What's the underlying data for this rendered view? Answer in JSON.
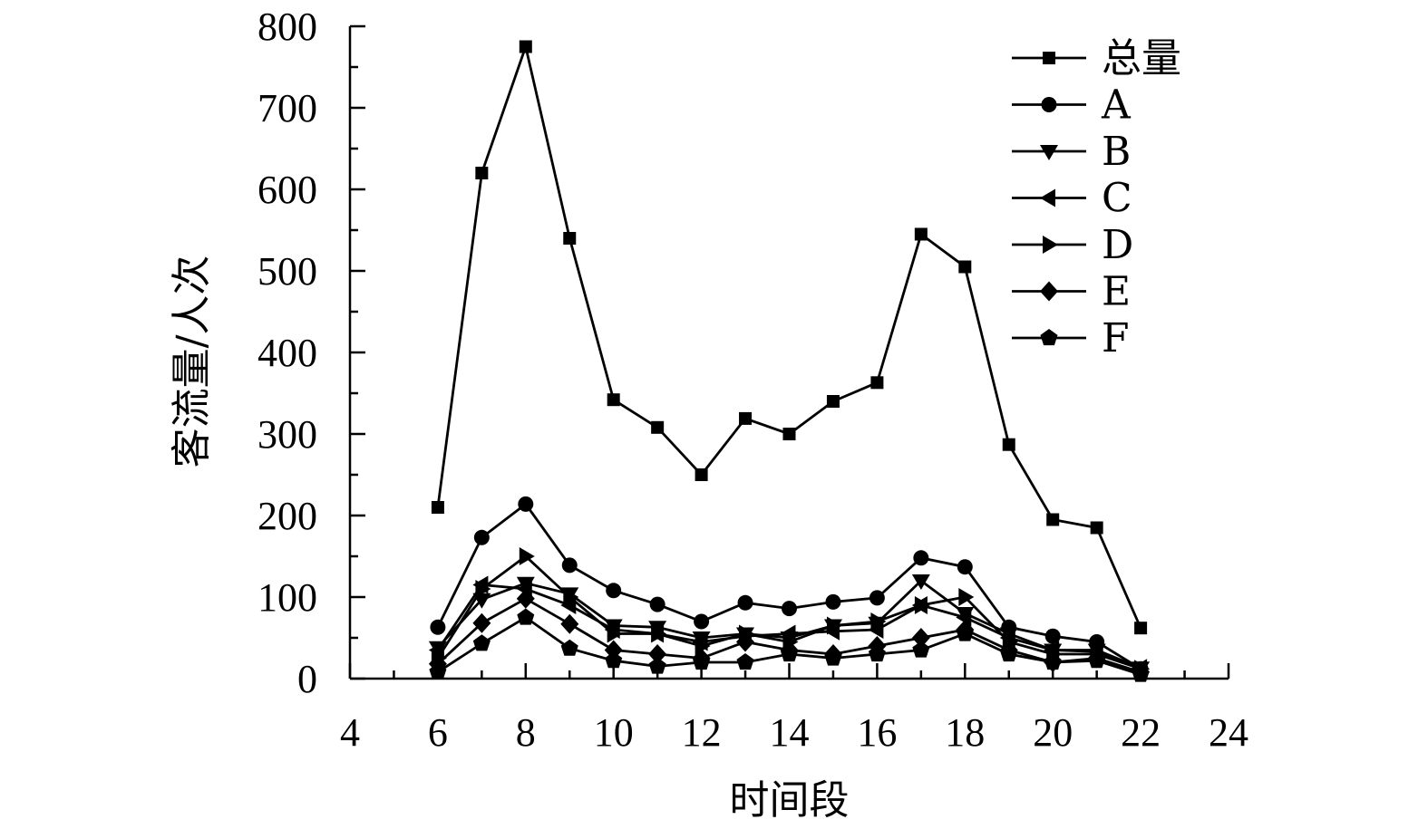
{
  "chart_data": {
    "type": "line",
    "xlabel": "时间段",
    "ylabel": "客流量/人次",
    "xlim": [
      4,
      24
    ],
    "ylim": [
      0,
      800
    ],
    "xticks": [
      4,
      6,
      8,
      10,
      12,
      14,
      16,
      18,
      20,
      22,
      24
    ],
    "yticks": [
      0,
      100,
      200,
      300,
      400,
      500,
      600,
      700,
      800
    ],
    "x": [
      6,
      7,
      8,
      9,
      10,
      11,
      12,
      13,
      14,
      15,
      16,
      17,
      18,
      19,
      20,
      21,
      22
    ],
    "legend_position": "top-right",
    "grid": false,
    "series": [
      {
        "name": "总量",
        "marker": "square",
        "values": [
          210,
          620,
          775,
          540,
          342,
          308,
          250,
          319,
          300,
          340,
          363,
          545,
          505,
          287,
          195,
          185,
          62
        ]
      },
      {
        "name": "A",
        "marker": "circle",
        "values": [
          63,
          173,
          214,
          139,
          108,
          91,
          70,
          93,
          86,
          94,
          99,
          148,
          137,
          63,
          52,
          45,
          12
        ]
      },
      {
        "name": "B",
        "marker": "triangle-down",
        "values": [
          38,
          97,
          117,
          104,
          65,
          63,
          50,
          55,
          50,
          65,
          68,
          120,
          80,
          55,
          35,
          35,
          13
        ]
      },
      {
        "name": "C",
        "marker": "triangle-left",
        "values": [
          35,
          115,
          110,
          90,
          60,
          55,
          45,
          52,
          55,
          58,
          60,
          90,
          75,
          50,
          35,
          33,
          13
        ]
      },
      {
        "name": "D",
        "marker": "triangle-right",
        "values": [
          25,
          110,
          150,
          100,
          55,
          55,
          40,
          55,
          45,
          65,
          70,
          90,
          100,
          45,
          30,
          30,
          12
        ]
      },
      {
        "name": "E",
        "marker": "diamond",
        "values": [
          18,
          68,
          98,
          67,
          35,
          30,
          25,
          45,
          35,
          30,
          40,
          50,
          60,
          35,
          20,
          25,
          8
        ]
      },
      {
        "name": "F",
        "marker": "pentagon",
        "values": [
          8,
          43,
          75,
          37,
          22,
          15,
          20,
          20,
          30,
          25,
          30,
          35,
          55,
          30,
          20,
          22,
          5
        ]
      }
    ]
  }
}
